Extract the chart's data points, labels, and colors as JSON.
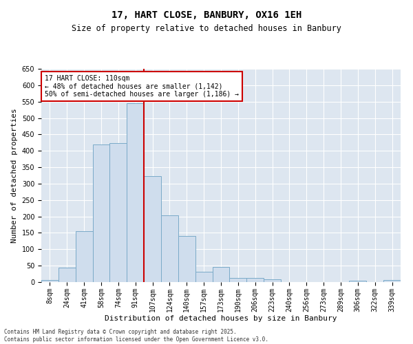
{
  "title_line1": "17, HART CLOSE, BANBURY, OX16 1EH",
  "title_line2": "Size of property relative to detached houses in Banbury",
  "xlabel": "Distribution of detached houses by size in Banbury",
  "ylabel": "Number of detached properties",
  "categories": [
    "8sqm",
    "24sqm",
    "41sqm",
    "58sqm",
    "74sqm",
    "91sqm",
    "107sqm",
    "124sqm",
    "140sqm",
    "157sqm",
    "173sqm",
    "190sqm",
    "206sqm",
    "223sqm",
    "240sqm",
    "256sqm",
    "273sqm",
    "289sqm",
    "306sqm",
    "322sqm",
    "339sqm"
  ],
  "values": [
    7,
    45,
    155,
    420,
    423,
    545,
    323,
    203,
    140,
    32,
    47,
    13,
    12,
    8,
    0,
    0,
    0,
    0,
    5,
    0,
    6
  ],
  "bar_color": "#cfdded",
  "bar_edge_color": "#7aaac8",
  "vline_index": 5.5,
  "vline_color": "#cc0000",
  "annotation_text": "17 HART CLOSE: 110sqm\n← 48% of detached houses are smaller (1,142)\n50% of semi-detached houses are larger (1,186) →",
  "annotation_box_color": "#ffffff",
  "annotation_box_edge": "#cc0000",
  "ylim": [
    0,
    650
  ],
  "yticks": [
    0,
    50,
    100,
    150,
    200,
    250,
    300,
    350,
    400,
    450,
    500,
    550,
    600,
    650
  ],
  "bg_color": "#dde6f0",
  "footer": "Contains HM Land Registry data © Crown copyright and database right 2025.\nContains public sector information licensed under the Open Government Licence v3.0.",
  "title_fontsize": 10,
  "subtitle_fontsize": 8.5,
  "axis_label_fontsize": 8,
  "tick_fontsize": 7,
  "annotation_fontsize": 7
}
